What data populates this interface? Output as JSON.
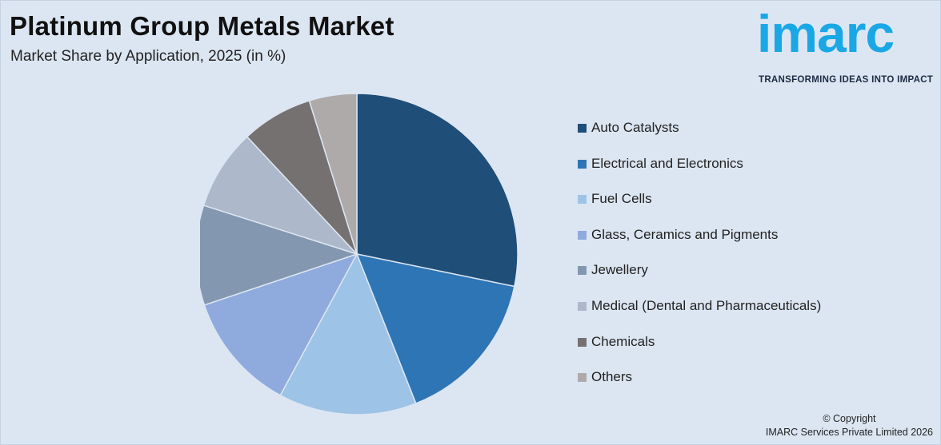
{
  "header": {
    "title": "Platinum Group Metals Market",
    "subtitle": "Market Share by Application, 2025 (in %)"
  },
  "logo": {
    "word": "imarc",
    "tagline": "TRANSFORMING IDEAS INTO IMPACT",
    "color": "#1aa7e6"
  },
  "chart_data": {
    "type": "pie",
    "title": "Platinum Group Metals Market",
    "subtitle": "Market Share by Application, 2025 (in %)",
    "legend_position": "right",
    "slices": [
      {
        "label": "Auto Catalysts",
        "value": 29.5,
        "color": "#1f4e79"
      },
      {
        "label": "Electrical and Electronics",
        "value": 16.5,
        "color": "#2e75b6"
      },
      {
        "label": "Fuel Cells",
        "value": 14.5,
        "color": "#9dc3e6"
      },
      {
        "label": "Glass, Ceramics and Pigments",
        "value": 12.5,
        "color": "#8faadc"
      },
      {
        "label": "Jewellery",
        "value": 10.5,
        "color": "#8497b0"
      },
      {
        "label": "Medical (Dental and Pharmaceuticals)",
        "value": 8.5,
        "color": "#adb9ca"
      },
      {
        "label": "Chemicals",
        "value": 7.5,
        "color": "#767171"
      },
      {
        "label": "Others",
        "value": 5.0,
        "color": "#aeaaaa"
      }
    ]
  },
  "footer": {
    "copyright_line1": "© Copyright",
    "copyright_line2": "IMARC Services Private Limited 2026"
  }
}
